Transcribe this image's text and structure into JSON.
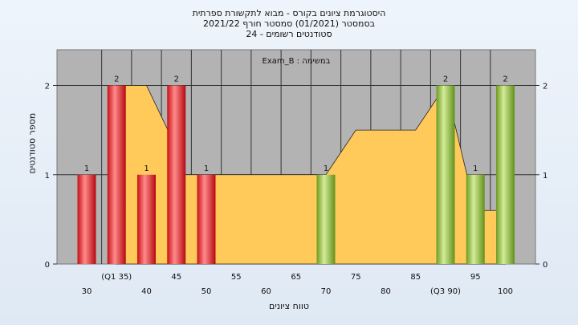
{
  "chart_data": {
    "type": "bar",
    "title_lines": [
      "היסטוגרמת ציונים בקורס - מבוא לתקשורת ספרתית",
      "בסמסטר  (01/2021)  סמסטר חורף  2021/22",
      "סטודנטים רשומים - 24"
    ],
    "annotation": "Exam_B : במשימה",
    "ylabel": "מספר סטודנטים",
    "xlabel": "טווח ציונים",
    "ylim": [
      0,
      2.4
    ],
    "y_ticks": [
      0,
      1,
      2
    ],
    "categories": [
      "30",
      "(Q1 35)",
      "40",
      "45",
      "50",
      "55",
      "60",
      "65",
      "70",
      "75",
      "80",
      "85",
      "(Q3 90)",
      "95",
      "100"
    ],
    "values": [
      1,
      2,
      1,
      2,
      1,
      0,
      0,
      0,
      1,
      0,
      0,
      0,
      2,
      1,
      2
    ],
    "bar_labels": [
      "1",
      "2",
      "1",
      "2",
      "1",
      "",
      "",
      "",
      "1",
      "",
      "",
      "",
      "2",
      "1",
      "2"
    ],
    "bar_colors": [
      "red",
      "red",
      "red",
      "red",
      "red",
      "",
      "",
      "",
      "green",
      "",
      "",
      "",
      "green",
      "green",
      "green"
    ],
    "area_curve": [
      {
        "x": "(Q1 35)",
        "y": 2
      },
      {
        "x": "40",
        "y": 2
      },
      {
        "x": "45",
        "y": 1.3
      },
      {
        "x": "45",
        "y": 1
      },
      {
        "x": "70",
        "y": 1
      },
      {
        "x": "75",
        "y": 1.5
      },
      {
        "x": "85",
        "y": 1.5
      },
      {
        "x": "(Q3 90)",
        "y": 2
      },
      {
        "x": "95",
        "y": 0.6
      },
      {
        "x": "100",
        "y": 0.6
      }
    ],
    "grid": true,
    "colors": {
      "red": "#e8232a",
      "green": "#8cbd3a",
      "area": "#ffca5a",
      "plot_bg": "#b3b3b3"
    }
  }
}
